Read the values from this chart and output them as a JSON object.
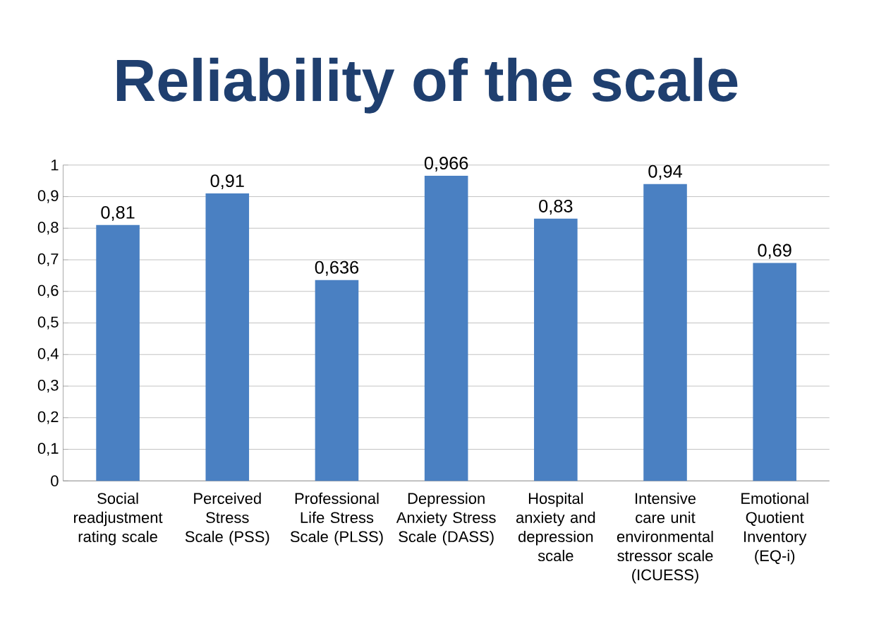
{
  "chart_data": {
    "type": "bar",
    "title": "Reliability of the scale",
    "categories": [
      "Social readjustment rating scale",
      "Perceived Stress Scale (PSS)",
      "Professional Life Stress Scale (PLSS)",
      "Depression Anxiety Stress Scale (DASS)",
      "Hospital anxiety and depression scale",
      "Intensive care unit environmental stressor scale (ICUESS)",
      "Emotional Quotient Inventory (EQ-i)"
    ],
    "values": [
      0.81,
      0.91,
      0.636,
      0.966,
      0.83,
      0.94,
      0.69
    ],
    "value_labels": [
      "0,81",
      "0,91",
      "0,636",
      "0,966",
      "0,83",
      "0,94",
      "0,69"
    ],
    "color": "#4a80c2",
    "ylim": [
      0,
      1
    ],
    "yticks": [
      {
        "value": 0,
        "label": "0"
      },
      {
        "value": 0.1,
        "label": "0,1"
      },
      {
        "value": 0.2,
        "label": "0,2"
      },
      {
        "value": 0.3,
        "label": "0,3"
      },
      {
        "value": 0.4,
        "label": "0,4"
      },
      {
        "value": 0.5,
        "label": "0,5"
      },
      {
        "value": 0.6,
        "label": "0,6"
      },
      {
        "value": 0.7,
        "label": "0,7"
      },
      {
        "value": 0.8,
        "label": "0,8"
      },
      {
        "value": 0.9,
        "label": "0,9"
      },
      {
        "value": 1,
        "label": "1"
      }
    ],
    "grid": "y"
  }
}
